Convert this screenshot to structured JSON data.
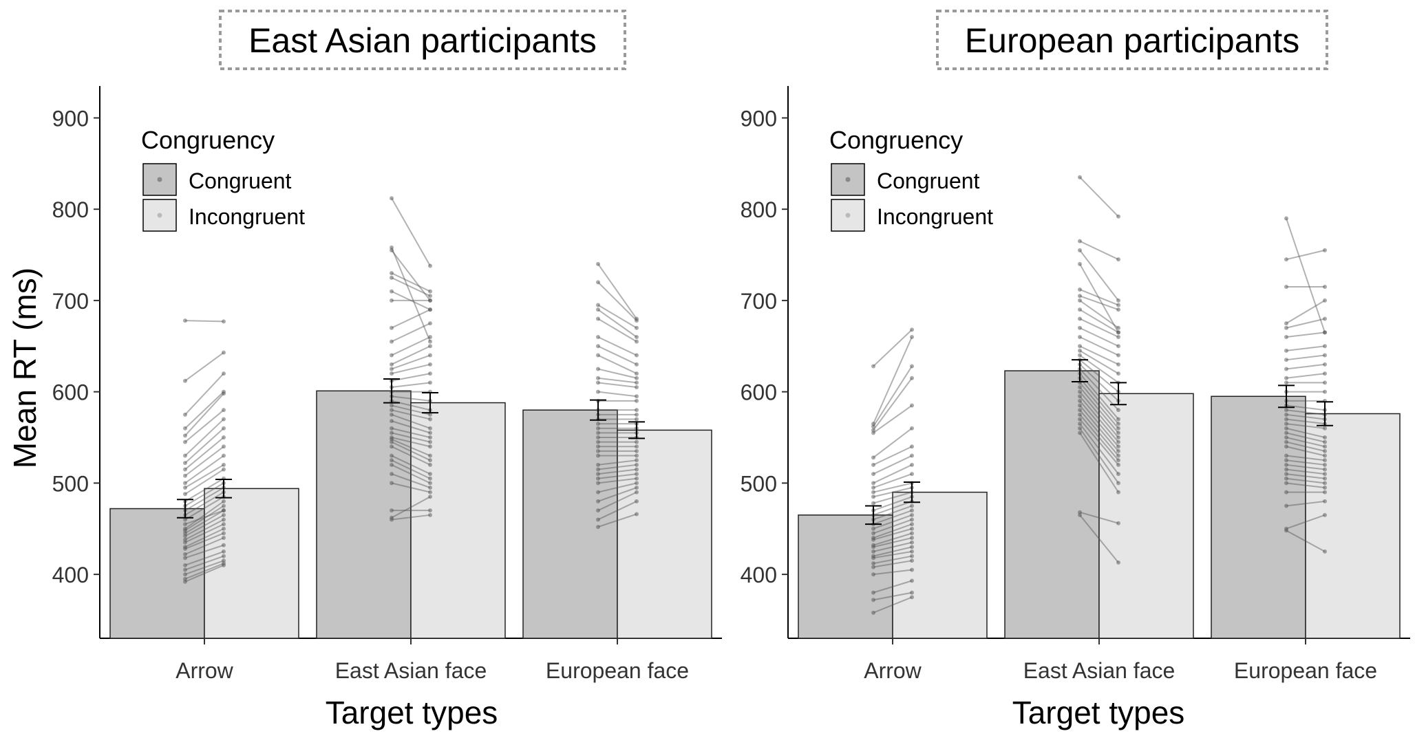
{
  "chart_data": [
    {
      "type": "bar",
      "title": "East Asian participants",
      "xlabel": "Target types",
      "ylabel": "Mean RT (ms)",
      "ylim": [
        330,
        935
      ],
      "yticks": [
        400,
        500,
        600,
        700,
        800,
        900
      ],
      "grid": false,
      "legend": {
        "title": "Congruency",
        "position": "top-left",
        "entries": [
          "Congruent",
          "Incongruent"
        ]
      },
      "categories": [
        "Arrow",
        "East Asian face",
        "European face"
      ],
      "series": [
        {
          "name": "Congruent",
          "color": "#c4c4c4",
          "values": [
            472,
            601,
            580
          ],
          "se": [
            10,
            13,
            11
          ]
        },
        {
          "name": "Incongruent",
          "color": "#e6e6e6",
          "values": [
            494,
            588,
            558
          ],
          "se": [
            10,
            11,
            9
          ]
        }
      ],
      "participants": [
        [
          [
            392,
            410
          ],
          [
            395,
            412
          ],
          [
            400,
            415
          ],
          [
            405,
            420
          ],
          [
            410,
            425
          ],
          [
            418,
            432
          ],
          [
            422,
            440
          ],
          [
            428,
            445
          ],
          [
            430,
            450
          ],
          [
            435,
            455
          ],
          [
            438,
            460
          ],
          [
            442,
            465
          ],
          [
            445,
            470
          ],
          [
            448,
            475
          ],
          [
            450,
            480
          ],
          [
            455,
            470
          ],
          [
            460,
            485
          ],
          [
            465,
            490
          ],
          [
            470,
            495
          ],
          [
            475,
            500
          ],
          [
            480,
            505
          ],
          [
            488,
            515
          ],
          [
            495,
            520
          ],
          [
            500,
            530
          ],
          [
            508,
            540
          ],
          [
            515,
            550
          ],
          [
            522,
            560
          ],
          [
            530,
            570
          ],
          [
            545,
            580
          ],
          [
            552,
            598
          ],
          [
            560,
            600
          ],
          [
            575,
            620
          ],
          [
            612,
            643
          ],
          [
            678,
            677
          ]
        ],
        [
          [
            460,
            465
          ],
          [
            462,
            485
          ],
          [
            470,
            470
          ],
          [
            500,
            490
          ],
          [
            510,
            495
          ],
          [
            520,
            500
          ],
          [
            525,
            505
          ],
          [
            530,
            510
          ],
          [
            540,
            520
          ],
          [
            545,
            525
          ],
          [
            548,
            530
          ],
          [
            550,
            540
          ],
          [
            555,
            545
          ],
          [
            560,
            550
          ],
          [
            568,
            555
          ],
          [
            575,
            560
          ],
          [
            580,
            570
          ],
          [
            585,
            575
          ],
          [
            590,
            580
          ],
          [
            595,
            590
          ],
          [
            600,
            600
          ],
          [
            605,
            610
          ],
          [
            612,
            620
          ],
          [
            620,
            630
          ],
          [
            625,
            640
          ],
          [
            630,
            650
          ],
          [
            640,
            660
          ],
          [
            655,
            675
          ],
          [
            670,
            690
          ],
          [
            700,
            700
          ],
          [
            710,
            690
          ],
          [
            725,
            705
          ],
          [
            730,
            710
          ],
          [
            755,
            700
          ],
          [
            758,
            655
          ],
          [
            812,
            738
          ]
        ],
        [
          [
            452,
            466
          ],
          [
            460,
            480
          ],
          [
            470,
            490
          ],
          [
            480,
            495
          ],
          [
            490,
            500
          ],
          [
            500,
            505
          ],
          [
            505,
            510
          ],
          [
            510,
            515
          ],
          [
            515,
            520
          ],
          [
            520,
            525
          ],
          [
            530,
            530
          ],
          [
            535,
            535
          ],
          [
            540,
            540
          ],
          [
            545,
            545
          ],
          [
            550,
            550
          ],
          [
            555,
            555
          ],
          [
            560,
            560
          ],
          [
            565,
            565
          ],
          [
            570,
            570
          ],
          [
            575,
            575
          ],
          [
            580,
            580
          ],
          [
            590,
            590
          ],
          [
            600,
            595
          ],
          [
            610,
            605
          ],
          [
            615,
            610
          ],
          [
            625,
            615
          ],
          [
            640,
            620
          ],
          [
            650,
            630
          ],
          [
            660,
            640
          ],
          [
            680,
            655
          ],
          [
            690,
            660
          ],
          [
            695,
            670
          ],
          [
            720,
            678
          ],
          [
            740,
            680
          ]
        ]
      ]
    },
    {
      "type": "bar",
      "title": "European participants",
      "xlabel": "Target types",
      "ylabel": "",
      "ylim": [
        330,
        935
      ],
      "yticks": [
        400,
        500,
        600,
        700,
        800,
        900
      ],
      "grid": false,
      "legend": {
        "title": "Congruency",
        "position": "top-left",
        "entries": [
          "Congruent",
          "Incongruent"
        ]
      },
      "categories": [
        "Arrow",
        "East Asian face",
        "European face"
      ],
      "series": [
        {
          "name": "Congruent",
          "color": "#c4c4c4",
          "values": [
            465,
            623,
            595
          ],
          "se": [
            10,
            12,
            12
          ]
        },
        {
          "name": "Incongruent",
          "color": "#e6e6e6",
          "values": [
            490,
            598,
            576
          ],
          "se": [
            11,
            12,
            13
          ]
        }
      ],
      "participants": [
        [
          [
            358,
            375
          ],
          [
            372,
            380
          ],
          [
            380,
            393
          ],
          [
            400,
            405
          ],
          [
            408,
            415
          ],
          [
            412,
            420
          ],
          [
            418,
            425
          ],
          [
            420,
            430
          ],
          [
            425,
            435
          ],
          [
            430,
            440
          ],
          [
            432,
            445
          ],
          [
            438,
            450
          ],
          [
            440,
            455
          ],
          [
            445,
            460
          ],
          [
            450,
            465
          ],
          [
            455,
            470
          ],
          [
            460,
            475
          ],
          [
            465,
            480
          ],
          [
            470,
            485
          ],
          [
            478,
            490
          ],
          [
            485,
            495
          ],
          [
            490,
            500
          ],
          [
            495,
            510
          ],
          [
            500,
            520
          ],
          [
            510,
            530
          ],
          [
            520,
            540
          ],
          [
            528,
            560
          ],
          [
            555,
            585
          ],
          [
            558,
            615
          ],
          [
            562,
            628
          ],
          [
            565,
            660
          ],
          [
            628,
            668
          ]
        ],
        [
          [
            465,
            413
          ],
          [
            468,
            456
          ],
          [
            555,
            490
          ],
          [
            560,
            500
          ],
          [
            565,
            510
          ],
          [
            570,
            520
          ],
          [
            575,
            525
          ],
          [
            580,
            530
          ],
          [
            585,
            535
          ],
          [
            590,
            540
          ],
          [
            595,
            545
          ],
          [
            600,
            550
          ],
          [
            605,
            555
          ],
          [
            610,
            560
          ],
          [
            615,
            565
          ],
          [
            620,
            570
          ],
          [
            625,
            580
          ],
          [
            630,
            590
          ],
          [
            635,
            600
          ],
          [
            640,
            610
          ],
          [
            645,
            620
          ],
          [
            650,
            630
          ],
          [
            660,
            640
          ],
          [
            670,
            650
          ],
          [
            680,
            660
          ],
          [
            690,
            665
          ],
          [
            700,
            670
          ],
          [
            705,
            690
          ],
          [
            712,
            695
          ],
          [
            740,
            665
          ],
          [
            755,
            700
          ],
          [
            765,
            745
          ],
          [
            835,
            792
          ]
        ],
        [
          [
            448,
            425
          ],
          [
            450,
            465
          ],
          [
            475,
            480
          ],
          [
            490,
            490
          ],
          [
            500,
            495
          ],
          [
            505,
            500
          ],
          [
            510,
            505
          ],
          [
            515,
            510
          ],
          [
            520,
            515
          ],
          [
            525,
            520
          ],
          [
            530,
            525
          ],
          [
            540,
            530
          ],
          [
            545,
            535
          ],
          [
            550,
            540
          ],
          [
            555,
            545
          ],
          [
            560,
            550
          ],
          [
            565,
            560
          ],
          [
            570,
            565
          ],
          [
            575,
            570
          ],
          [
            580,
            575
          ],
          [
            585,
            580
          ],
          [
            590,
            590
          ],
          [
            600,
            600
          ],
          [
            610,
            610
          ],
          [
            615,
            620
          ],
          [
            625,
            630
          ],
          [
            635,
            640
          ],
          [
            645,
            650
          ],
          [
            660,
            665
          ],
          [
            670,
            680
          ],
          [
            675,
            700
          ],
          [
            715,
            715
          ],
          [
            745,
            755
          ],
          [
            790,
            665
          ]
        ]
      ]
    }
  ]
}
